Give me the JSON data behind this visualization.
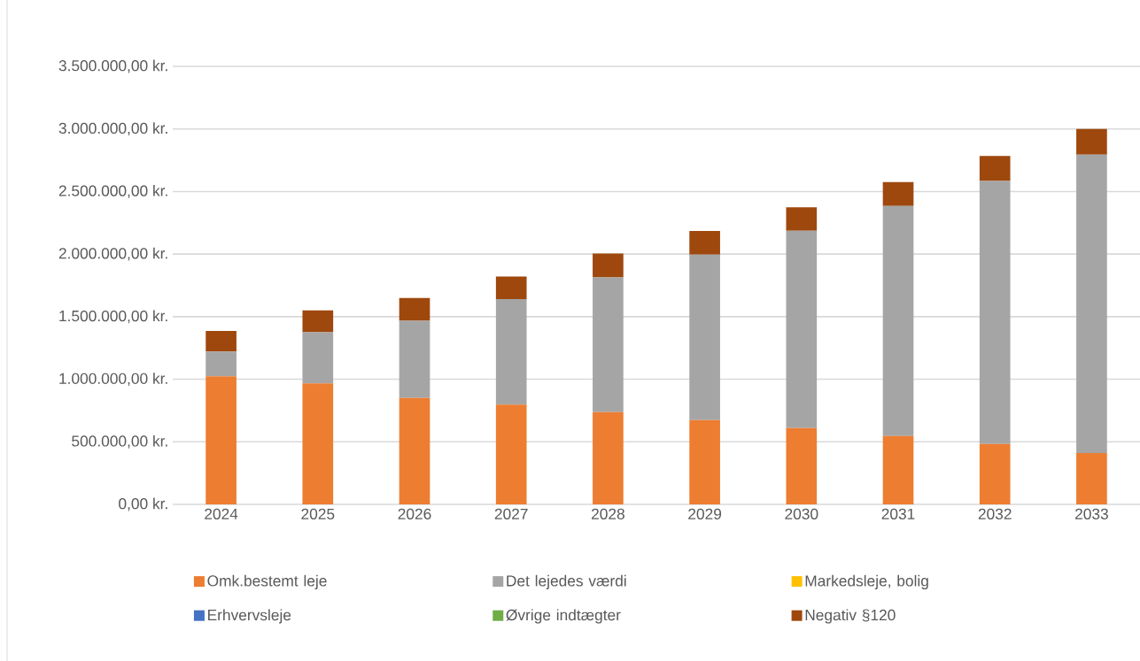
{
  "chart_data": {
    "type": "bar",
    "stacked": true,
    "categories": [
      "2024",
      "2025",
      "2026",
      "2027",
      "2028",
      "2029",
      "2030",
      "2031",
      "2032",
      "2033"
    ],
    "series": [
      {
        "name": "Omk.bestemt leje",
        "color": "#ed7d31",
        "values": [
          1024000,
          967000,
          851000,
          797000,
          737000,
          673000,
          609000,
          546000,
          483000,
          410000
        ]
      },
      {
        "name": "Det lejedes værdi",
        "color": "#a5a5a5",
        "values": [
          198000,
          408000,
          616000,
          843000,
          1077000,
          1322000,
          1577000,
          1839000,
          2102000,
          2385000
        ]
      },
      {
        "name": "Markedsleje, bolig",
        "color": "#ffc000",
        "values": [
          0,
          0,
          0,
          0,
          0,
          0,
          0,
          0,
          0,
          0
        ]
      },
      {
        "name": "Erhvervsleje",
        "color": "#4472c4",
        "values": [
          0,
          0,
          0,
          0,
          0,
          0,
          0,
          0,
          0,
          0
        ]
      },
      {
        "name": "Øvrige indtægter",
        "color": "#70ad47",
        "values": [
          0,
          0,
          0,
          0,
          0,
          0,
          0,
          0,
          0,
          0
        ]
      },
      {
        "name": "Negativ §120",
        "color": "#9e480e",
        "values": [
          163000,
          175000,
          182000,
          181000,
          191000,
          189000,
          188000,
          191000,
          199000,
          205000
        ]
      }
    ],
    "ylim": [
      0,
      3500000
    ],
    "yticks": [
      {
        "value": 0,
        "label": "0,00 kr."
      },
      {
        "value": 500000,
        "label": "500.000,00 kr."
      },
      {
        "value": 1000000,
        "label": "1.000.000,00 kr."
      },
      {
        "value": 1500000,
        "label": "1.500.000,00 kr."
      },
      {
        "value": 2000000,
        "label": "2.000.000,00 kr."
      },
      {
        "value": 2500000,
        "label": "2.500.000,00 kr."
      },
      {
        "value": 3000000,
        "label": "3.000.000,00 kr."
      },
      {
        "value": 3500000,
        "label": "3.500.000,00 kr."
      }
    ],
    "grid": "y",
    "legend": "bottom"
  }
}
